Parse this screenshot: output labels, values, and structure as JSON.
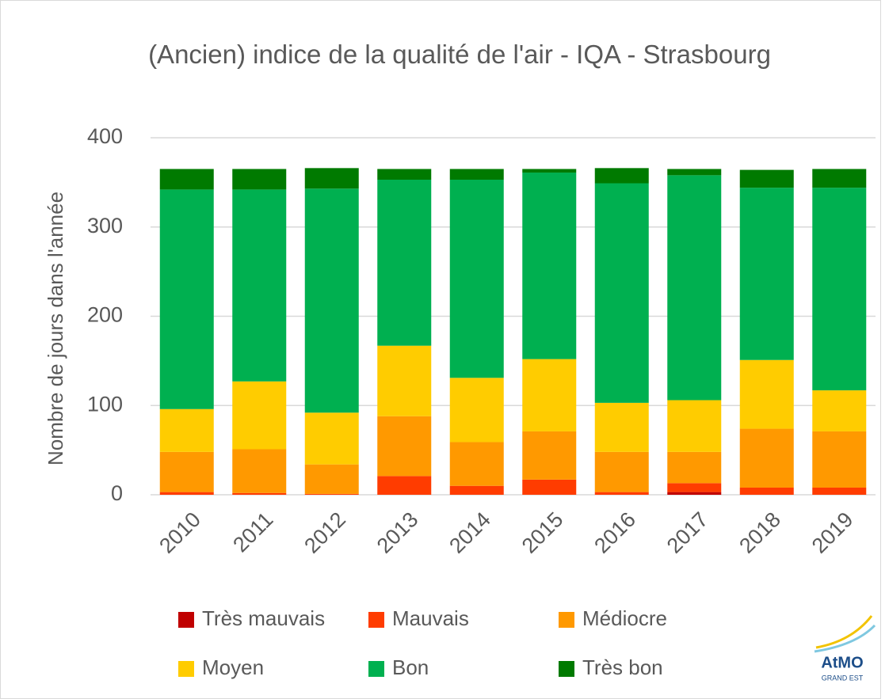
{
  "chart_data": {
    "type": "stacked_bar",
    "title": "(Ancien) indice de la qualité de l'air - IQA - Strasbourg",
    "y_label": "Nombre de jours dans l'année",
    "categories": [
      "2010",
      "2011",
      "2012",
      "2013",
      "2014",
      "2015",
      "2016",
      "2017",
      "2018",
      "2019"
    ],
    "series": [
      {
        "name": "Très mauvais",
        "color": "#c00000",
        "values": [
          0,
          0,
          0,
          0,
          0,
          0,
          0,
          3,
          0,
          0
        ]
      },
      {
        "name": "Mauvais",
        "color": "#ff3c00",
        "values": [
          3,
          2,
          1,
          21,
          10,
          17,
          3,
          10,
          8,
          8
        ]
      },
      {
        "name": "Médiocre",
        "color": "#ff9900",
        "values": [
          45,
          49,
          33,
          67,
          49,
          54,
          45,
          35,
          66,
          63
        ]
      },
      {
        "name": "Moyen",
        "color": "#ffcc00",
        "values": [
          48,
          76,
          58,
          79,
          72,
          81,
          55,
          58,
          77,
          46
        ]
      },
      {
        "name": "Bon",
        "color": "#00b050",
        "values": [
          246,
          215,
          251,
          186,
          222,
          209,
          246,
          252,
          193,
          227
        ]
      },
      {
        "name": "Très bon",
        "color": "#007a00",
        "values": [
          23,
          23,
          23,
          12,
          12,
          4,
          17,
          7,
          20,
          21
        ]
      }
    ],
    "ylim": [
      0,
      400
    ],
    "yticks": [
      0,
      100,
      200,
      300,
      400
    ],
    "grid": true,
    "legend": "bottom",
    "logo": {
      "name": "AtMO",
      "subtitle": "GRAND EST"
    }
  }
}
